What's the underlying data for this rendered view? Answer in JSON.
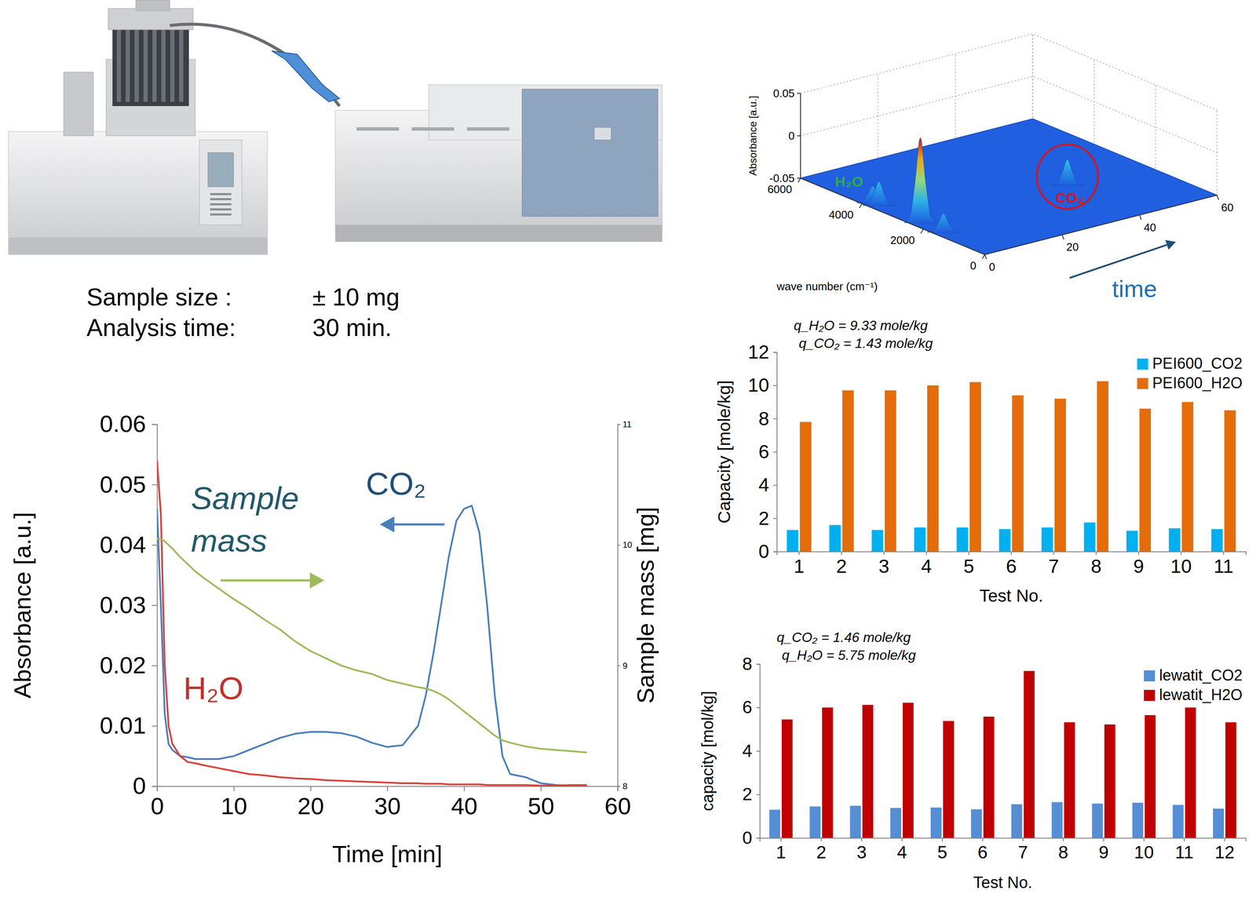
{
  "specs": [
    {
      "label": "Sample size  :",
      "value": "± 10 mg"
    },
    {
      "label": "Analysis time:",
      "value": "30 min."
    }
  ],
  "chart_data": [
    {
      "type": "surface3d",
      "x_label": "wave number (cm⁻¹)",
      "y_label": "time",
      "z_label": "Absorbance [a.u.]",
      "xlim": [
        0,
        6000
      ],
      "xticks": [
        0,
        2000,
        4000,
        6000
      ],
      "ylim": [
        0,
        60
      ],
      "yticks": [
        0,
        20,
        40,
        60
      ],
      "zlim": [
        -0.05,
        0.05
      ],
      "zticks": [
        -0.05,
        0,
        0.05
      ],
      "grid": true,
      "peaks": [
        {
          "wavenumber": 2350,
          "time": 40,
          "absorbance": -0.02
        },
        {
          "wavenumber": 3900,
          "time": 2,
          "absorbance": -0.03
        },
        {
          "wavenumber": 3700,
          "time": 2,
          "absorbance": -0.022
        },
        {
          "wavenumber": 2350,
          "time": 2,
          "absorbance": 0.05
        },
        {
          "wavenumber": 1600,
          "time": 2,
          "absorbance": -0.028
        }
      ],
      "annotations": [
        {
          "text": "CO₂",
          "color": "#e01010"
        },
        {
          "text": "H₂O",
          "color": "#2fb03a"
        }
      ]
    },
    {
      "type": "line",
      "x_label": "Time [min]",
      "y_label": "Absorbance [a.u.]",
      "y2_label": "Sample mass [mg]",
      "xlim": [
        0,
        60
      ],
      "xticks": [
        0,
        10,
        20,
        30,
        40,
        50,
        60
      ],
      "ylim": [
        0,
        0.06
      ],
      "yticks": [
        0,
        0.01,
        0.02,
        0.03,
        0.04,
        0.05,
        0.06
      ],
      "y2lim": [
        8,
        11
      ],
      "y2ticks": [
        8,
        9,
        10,
        11
      ],
      "grid": false,
      "x": [
        0,
        0.5,
        1,
        1.5,
        2,
        3,
        4,
        5,
        6,
        8,
        10,
        12,
        14,
        16,
        18,
        20,
        22,
        24,
        26,
        28,
        30,
        32,
        34,
        35,
        36,
        37,
        38,
        39,
        40,
        41,
        42,
        43,
        44,
        45,
        46,
        48,
        50,
        52,
        54,
        56
      ],
      "series": [
        {
          "name": "CO₂",
          "color": "#4a7ebb",
          "values": [
            0.046,
            0.03,
            0.012,
            0.007,
            0.006,
            0.005,
            0.0048,
            0.0045,
            0.0045,
            0.0045,
            0.005,
            0.006,
            0.007,
            0.008,
            0.0087,
            0.009,
            0.009,
            0.0088,
            0.0082,
            0.0072,
            0.0065,
            0.0068,
            0.01,
            0.015,
            0.022,
            0.03,
            0.038,
            0.044,
            0.046,
            0.0465,
            0.042,
            0.03,
            0.015,
            0.005,
            0.002,
            0.0015,
            0.0005,
            0.0002,
            0.0001,
            0
          ]
        },
        {
          "name": "H₂O",
          "color": "#d9403a",
          "values": [
            0.054,
            0.045,
            0.02,
            0.01,
            0.007,
            0.005,
            0.004,
            0.0038,
            0.0035,
            0.003,
            0.0025,
            0.002,
            0.0018,
            0.0015,
            0.0013,
            0.0012,
            0.001,
            0.0009,
            0.0008,
            0.0007,
            0.0006,
            0.0005,
            0.0005,
            0.0004,
            0.0004,
            0.0004,
            0.0003,
            0.0003,
            0.0003,
            0.0003,
            0.0003,
            0.0002,
            0.0002,
            0.0002,
            0.0002,
            0.0002,
            0.0001,
            0.0001,
            0.0002,
            0.0002
          ]
        },
        {
          "name": "Sample mass",
          "color": "#9bbb59",
          "axis": "y2",
          "values": [
            10.05,
            10.05,
            10.03,
            10.0,
            9.97,
            9.9,
            9.84,
            9.78,
            9.73,
            9.64,
            9.55,
            9.47,
            9.38,
            9.3,
            9.2,
            9.12,
            9.06,
            9.0,
            8.96,
            8.93,
            8.88,
            8.85,
            8.82,
            8.81,
            8.79,
            8.76,
            8.72,
            8.67,
            8.62,
            8.57,
            8.52,
            8.47,
            8.42,
            8.38,
            8.36,
            8.33,
            8.31,
            8.3,
            8.29,
            8.28
          ]
        }
      ]
    },
    {
      "type": "bar",
      "x_label": "Test No.",
      "y_label": "Capacity [mole/kg]",
      "annotations": [
        "q_H₂O = 9.33 mole/kg",
        "q_CO₂ = 1.43 mole/kg"
      ],
      "categories": [
        "1",
        "2",
        "3",
        "4",
        "5",
        "6",
        "7",
        "8",
        "9",
        "10",
        "11"
      ],
      "ylim": [
        0,
        12
      ],
      "yticks": [
        0,
        2,
        4,
        6,
        8,
        10,
        12
      ],
      "grid": false,
      "legend": "top-right",
      "series": [
        {
          "name": "PEI600_CO2",
          "color": "#00b0f0",
          "values": [
            1.3,
            1.6,
            1.3,
            1.45,
            1.45,
            1.35,
            1.45,
            1.75,
            1.25,
            1.4,
            1.35
          ]
        },
        {
          "name": "PEI600_H2O",
          "color": "#e46c0a",
          "values": [
            7.8,
            9.7,
            9.7,
            10.0,
            10.2,
            9.4,
            9.2,
            10.25,
            8.6,
            9.0,
            8.5
          ]
        }
      ]
    },
    {
      "type": "bar",
      "x_label": "Test No.",
      "y_label": "capacity [mol/kg]",
      "annotations": [
        "q_CO₂ = 1.46 mole/kg",
        "q_H₂O = 5.75 mole/kg"
      ],
      "categories": [
        "1",
        "2",
        "3",
        "4",
        "5",
        "6",
        "7",
        "8",
        "9",
        "10",
        "11",
        "12"
      ],
      "ylim": [
        0,
        8
      ],
      "yticks": [
        0,
        2,
        4,
        6,
        8
      ],
      "grid": false,
      "legend": "top-right",
      "series": [
        {
          "name": "lewatit_CO2",
          "color": "#558ed5",
          "values": [
            1.3,
            1.45,
            1.48,
            1.38,
            1.4,
            1.32,
            1.55,
            1.65,
            1.58,
            1.62,
            1.52,
            1.35
          ]
        },
        {
          "name": "lewatit_H2O",
          "color": "#c00000",
          "values": [
            5.45,
            6.0,
            6.12,
            6.22,
            5.38,
            5.58,
            7.68,
            5.32,
            5.22,
            5.65,
            6.0,
            5.32
          ]
        }
      ]
    }
  ]
}
